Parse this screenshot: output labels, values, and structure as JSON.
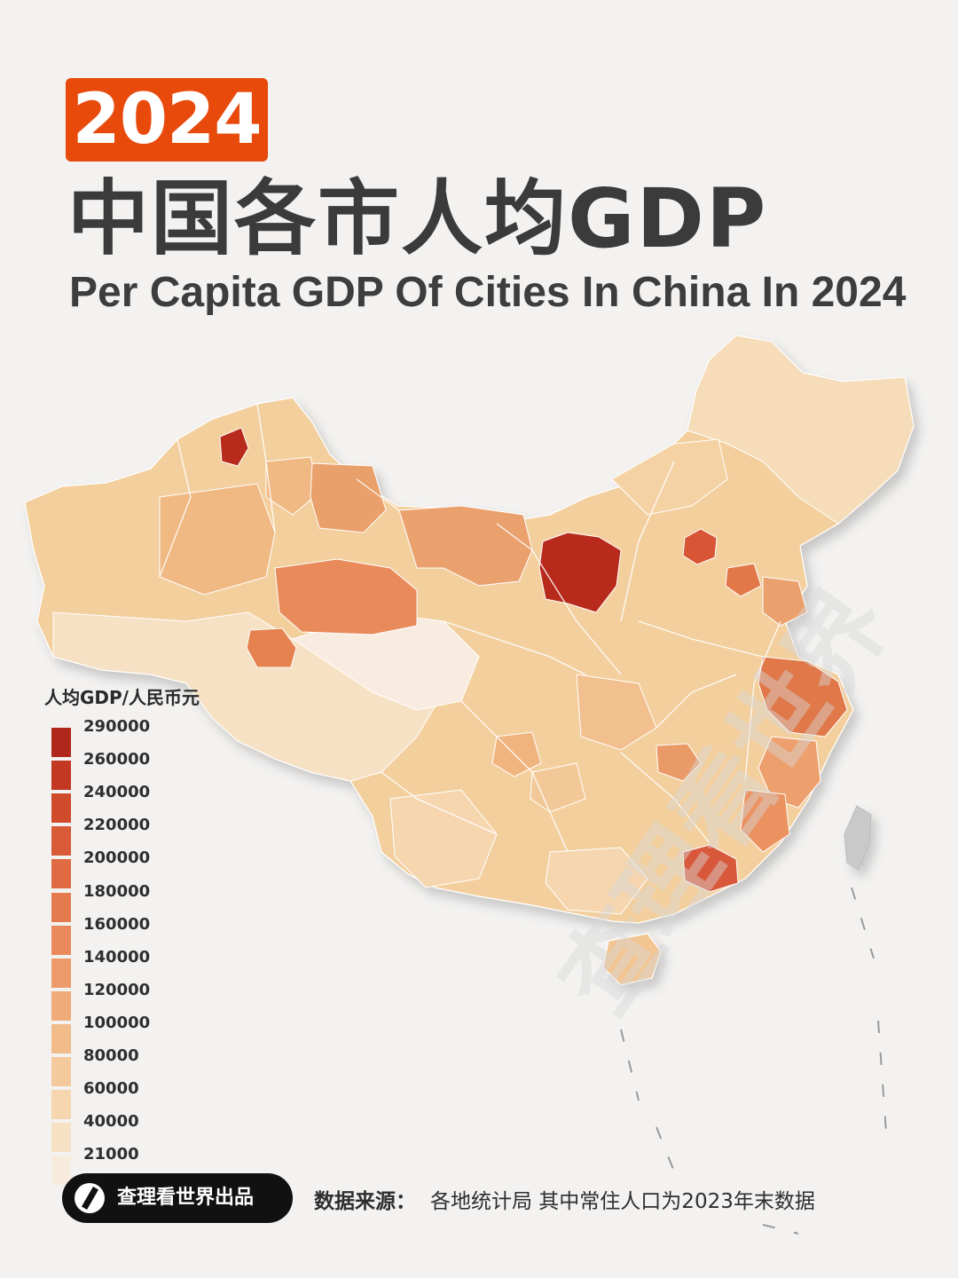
{
  "header": {
    "year": "2024",
    "title_cn": "中国各市人均GDP",
    "title_en": "Per Capita GDP Of Cities In China In 2024"
  },
  "legend": {
    "title": "人均GDP/人民币元",
    "items": [
      {
        "value": "290000",
        "color": "#b1271b"
      },
      {
        "value": "260000",
        "color": "#c23822"
      },
      {
        "value": "240000",
        "color": "#cf4b2c"
      },
      {
        "value": "220000",
        "color": "#d95a36"
      },
      {
        "value": "200000",
        "color": "#e06a42"
      },
      {
        "value": "180000",
        "color": "#e57a4e"
      },
      {
        "value": "160000",
        "color": "#e98a5c"
      },
      {
        "value": "140000",
        "color": "#ed9b6a"
      },
      {
        "value": "120000",
        "color": "#f0ab7a"
      },
      {
        "value": "100000",
        "color": "#f2bb8a"
      },
      {
        "value": "80000",
        "color": "#f4c99c"
      },
      {
        "value": "60000",
        "color": "#f5d6af"
      },
      {
        "value": "40000",
        "color": "#f6e1c5"
      },
      {
        "value": "21000",
        "color": "#f7ebde"
      }
    ]
  },
  "footer": {
    "brand": "查理看世界出品",
    "source_label": "数据来源：",
    "source_text": "各地统计局  其中常住人口为2023年末数据"
  },
  "watermark": "查理看世界",
  "colors": {
    "accent": "#e84a0c",
    "background": "#f3f2f1",
    "map_base": "#f3cf9e"
  }
}
